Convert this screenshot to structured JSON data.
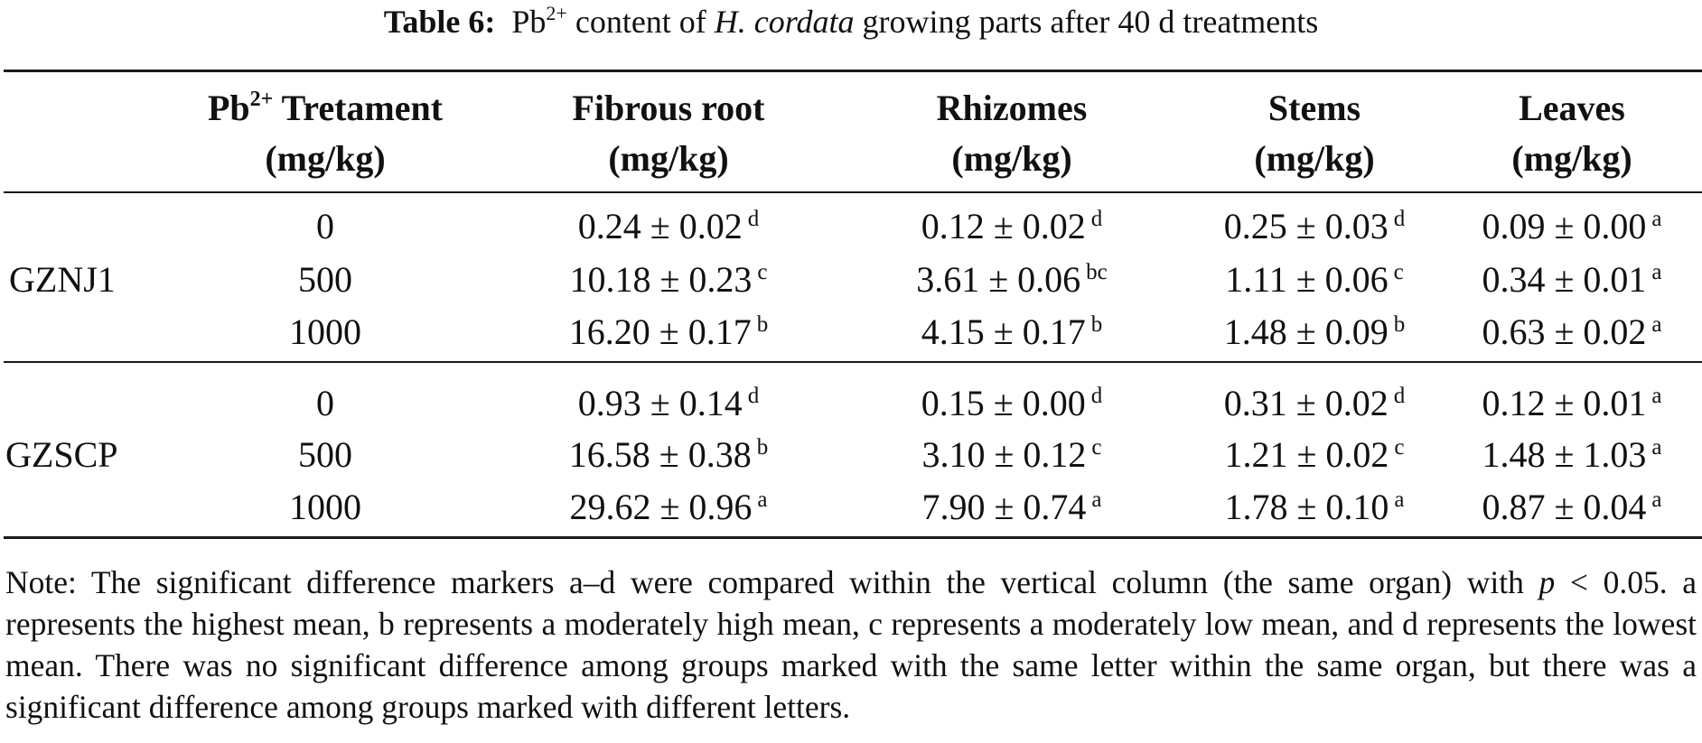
{
  "caption": {
    "label": "Table 6:",
    "text_before": "Pb",
    "superscript": "2+",
    "text_middle": " content of ",
    "species": "H. cordata",
    "text_after": " growing parts after 40 d treatments"
  },
  "headers": {
    "treatment_prefix": "Pb",
    "treatment_sup": "2+",
    "treatment_name": " Tretament",
    "treatment_unit": "(mg/kg)",
    "fibrous_root": "Fibrous root",
    "fibrous_root_unit": "(mg/kg)",
    "rhizomes": "Rhizomes",
    "rhizomes_unit": "(mg/kg)",
    "stems": "Stems",
    "stems_unit": "(mg/kg)",
    "leaves": "Leaves",
    "leaves_unit": "(mg/kg)"
  },
  "groups": [
    {
      "name": "GZNJ1",
      "rows": [
        {
          "treatment": "0",
          "fibrous_root": {
            "v": "0.24 ± 0.02",
            "s": "d"
          },
          "rhizomes": {
            "v": "0.12 ± 0.02",
            "s": "d"
          },
          "stems": {
            "v": "0.25 ± 0.03",
            "s": "d"
          },
          "leaves": {
            "v": "0.09 ± 0.00",
            "s": "a"
          }
        },
        {
          "treatment": "500",
          "fibrous_root": {
            "v": "10.18 ± 0.23",
            "s": "c"
          },
          "rhizomes": {
            "v": "3.61 ± 0.06",
            "s": "bc"
          },
          "stems": {
            "v": "1.11 ± 0.06",
            "s": "c"
          },
          "leaves": {
            "v": "0.34 ± 0.01",
            "s": "a"
          }
        },
        {
          "treatment": "1000",
          "fibrous_root": {
            "v": "16.20 ± 0.17",
            "s": "b"
          },
          "rhizomes": {
            "v": "4.15 ± 0.17",
            "s": "b"
          },
          "stems": {
            "v": "1.48 ± 0.09",
            "s": "b"
          },
          "leaves": {
            "v": "0.63 ± 0.02",
            "s": "a"
          }
        }
      ]
    },
    {
      "name": "GZSCP",
      "rows": [
        {
          "treatment": "0",
          "fibrous_root": {
            "v": "0.93 ± 0.14",
            "s": "d"
          },
          "rhizomes": {
            "v": "0.15 ± 0.00",
            "s": "d"
          },
          "stems": {
            "v": "0.31 ± 0.02",
            "s": "d"
          },
          "leaves": {
            "v": "0.12 ± 0.01",
            "s": "a"
          }
        },
        {
          "treatment": "500",
          "fibrous_root": {
            "v": "16.58 ± 0.38",
            "s": "b"
          },
          "rhizomes": {
            "v": "3.10 ± 0.12",
            "s": "c"
          },
          "stems": {
            "v": "1.21 ± 0.02",
            "s": "c"
          },
          "leaves": {
            "v": "1.48 ± 1.03",
            "s": "a"
          }
        },
        {
          "treatment": "1000",
          "fibrous_root": {
            "v": "29.62 ± 0.96",
            "s": "a"
          },
          "rhizomes": {
            "v": "7.90 ± 0.74",
            "s": "a"
          },
          "stems": {
            "v": "1.78 ± 0.10",
            "s": "a"
          },
          "leaves": {
            "v": "0.87 ± 0.04",
            "s": "a"
          }
        }
      ]
    }
  ],
  "note": {
    "part1": "Note: The significant difference markers a–d were compared within the vertical column (the same organ) with ",
    "p_symbol": "p",
    "part2": " < 0.05. a represents the highest mean, b represents a moderately high mean, c represents a moderately low mean, and d represents the lowest mean. There was no significant difference among groups marked with the same letter within the same organ, but there was a significant difference among groups marked with different letters."
  }
}
